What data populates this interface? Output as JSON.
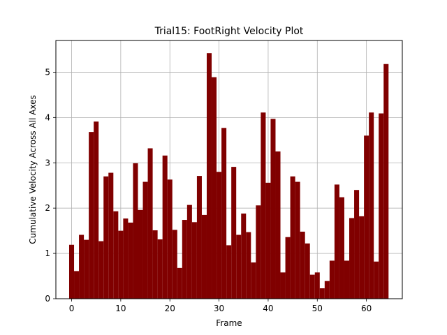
{
  "chart_data": {
    "type": "bar",
    "title": "Trial15: FootRight Velocity Plot",
    "xlabel": "Frame",
    "ylabel": "Cumulative Velocity Across All Axes",
    "xlim": [
      -3.2,
      67.3
    ],
    "ylim": [
      0,
      5.7
    ],
    "xticks": [
      0,
      10,
      20,
      30,
      40,
      50,
      60
    ],
    "yticks": [
      0,
      1,
      2,
      3,
      4,
      5
    ],
    "grid": true,
    "bar_color": "#800000",
    "x": [
      0,
      1,
      2,
      3,
      4,
      5,
      6,
      7,
      8,
      9,
      10,
      11,
      12,
      13,
      14,
      15,
      16,
      17,
      18,
      19,
      20,
      21,
      22,
      23,
      24,
      25,
      26,
      27,
      28,
      29,
      30,
      31,
      32,
      33,
      34,
      35,
      36,
      37,
      38,
      39,
      40,
      41,
      42,
      43,
      44,
      45,
      46,
      47,
      48,
      49,
      50,
      51,
      52,
      53,
      54,
      55,
      56,
      57,
      58,
      59,
      60,
      61,
      62,
      63,
      64
    ],
    "values": [
      1.19,
      0.61,
      1.41,
      1.3,
      3.68,
      3.91,
      1.27,
      2.7,
      2.78,
      1.93,
      1.5,
      1.77,
      1.68,
      2.99,
      1.96,
      2.58,
      3.32,
      1.51,
      1.31,
      3.16,
      2.63,
      1.52,
      0.68,
      1.74,
      2.07,
      1.69,
      2.71,
      1.85,
      5.42,
      4.89,
      2.8,
      3.77,
      1.18,
      2.91,
      1.41,
      1.88,
      1.47,
      0.8,
      2.06,
      4.11,
      2.56,
      3.97,
      3.25,
      0.58,
      1.36,
      2.7,
      2.58,
      1.48,
      1.22,
      0.53,
      0.58,
      0.23,
      0.39,
      0.84,
      2.52,
      2.24,
      0.84,
      1.78,
      2.4,
      1.82,
      3.6,
      4.11,
      0.82,
      4.09,
      5.18
    ]
  }
}
